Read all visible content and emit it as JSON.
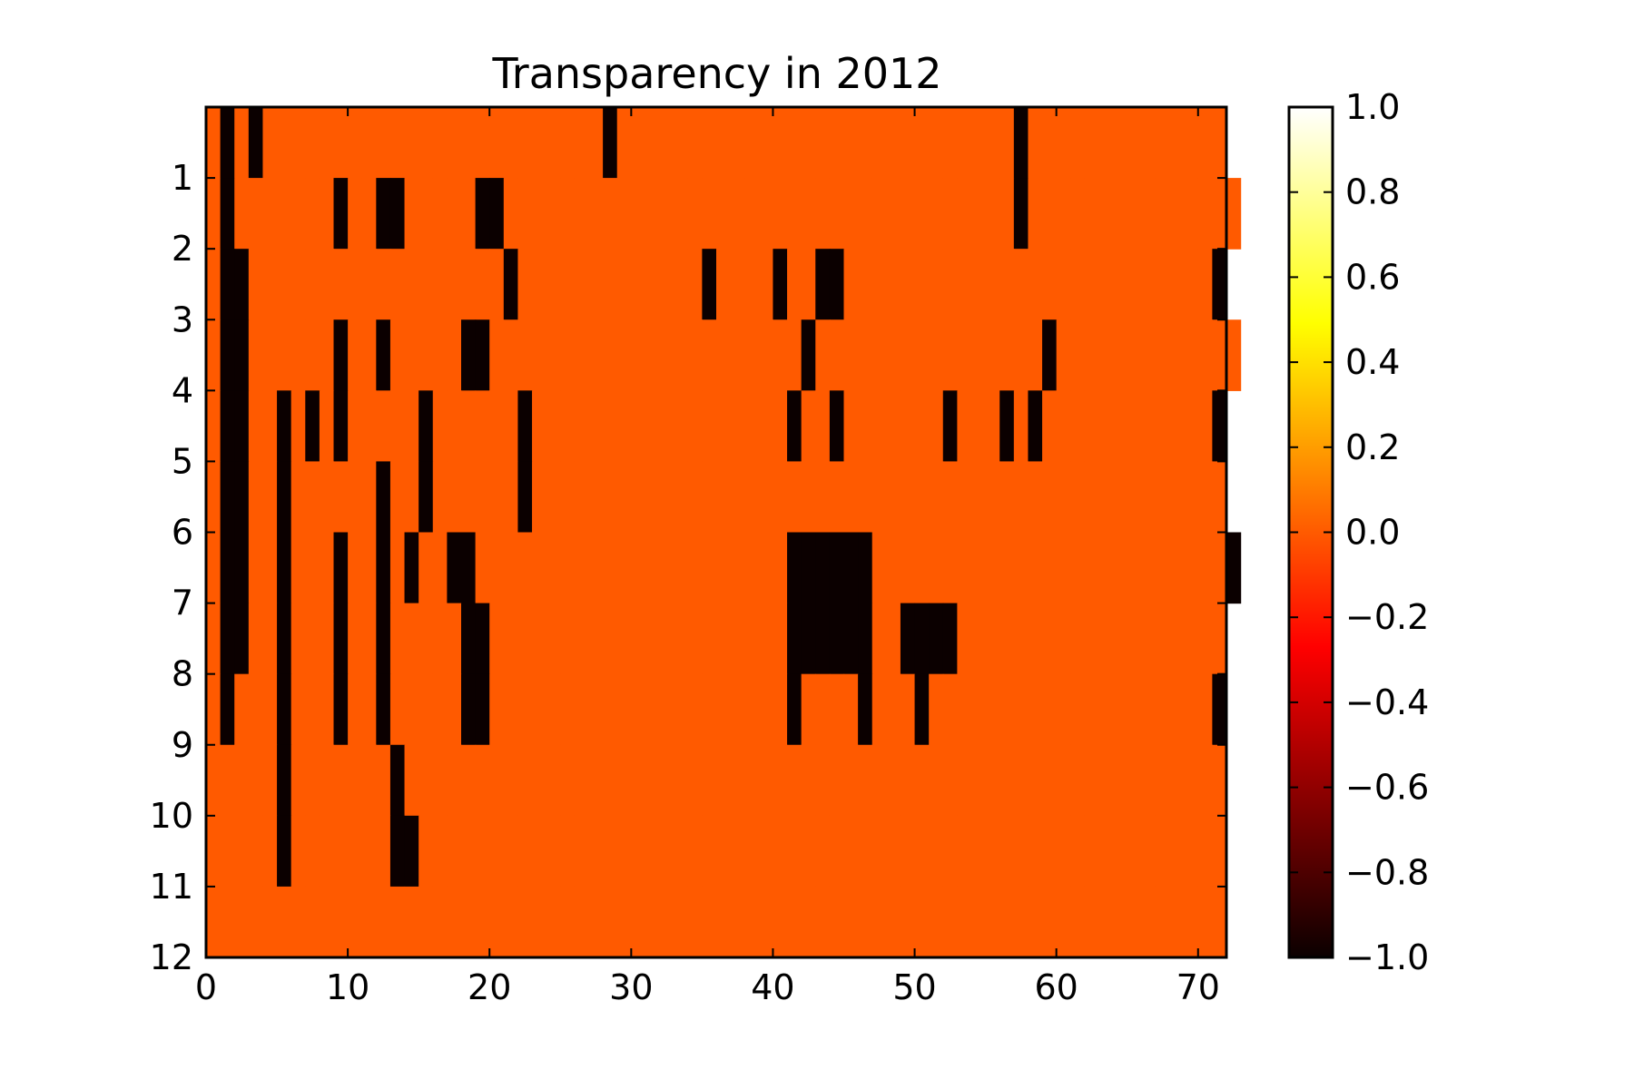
{
  "chart_data": {
    "type": "heatmap",
    "title": "Transparency in 2012",
    "xlabel": "",
    "ylabel": "",
    "xlim": [
      0,
      72
    ],
    "ylim": [
      12,
      0
    ],
    "x_ticks": [
      "0",
      "10",
      "20",
      "30",
      "40",
      "50",
      "60",
      "70"
    ],
    "y_ticks": [
      "1",
      "2",
      "3",
      "4",
      "5",
      "6",
      "7",
      "8",
      "9",
      "10",
      "11",
      "12"
    ],
    "colorbar": {
      "range": [
        -1.0,
        1.0
      ],
      "ticks": [
        "1.0",
        "0.8",
        "0.6",
        "0.4",
        "0.2",
        "0.0",
        "−0.2",
        "−0.4",
        "−0.6",
        "−0.8",
        "−1.0"
      ],
      "colormap": "hot"
    },
    "encoding": "Each row is one y band (0-1 through 11-12). Each string has 72 characters, one per x column 0-71. a = -1.0, b = 0.0, c = 1.0.",
    "rows": [
      "bababbbbbbbbbbbbbbbbbbbbbbbbabbbbbbbbbbbbbbbbbbbbbbbbbbbbabbbbbbbbbbbbbb",
      "babbbbbbbabbaabbbbbaabbbbbbbbbbbbbbbbbbbbbbbbbbbbbbbbbbbbabbbbbbbbbbbbbbb",
      "baabbbbbbbbbbbbbbbbbbabbbbbbbbbbbbbabbbbabbaabbbbbbbbbbbbbbbbbbbbbbbbbba",
      "baabbbbbbabbabbbbbaabbbbbbbbbbbbbbbbbbbbbbabbbbbbbbbbbbbbbbabbbbbbbbbbbbb",
      "baabbabababbbbbabbbbbbabbbbbbbbbbbbbbbbbbabbabbbbbbbabbbababbbbbbbbbbbba",
      "baabbabbbbbbabbabbbbbbabbbbbbbbbbbbbbbbbbbbbbbbbbbbbbbbbbbbbbbbbbbbbbbbb",
      "baabbabbbabbababbaabbbbbbbbbbbbbbbbbbbbbbaaaaaabbbbbbbbbbbbbbbbbbbbbbbbba",
      "baabbabbbabbabbbbbaabbbbbbbbbbbbbbbbbbbbbaaaaaabbaaaabbbbbbbbbbbbbbbbbbb",
      "babbbabbbabbabbbbbaabbbbbbbbbbbbbbbbbbbbbabbbbabbbabbbbbbbbbbbbbbbbbbbba",
      "bbbbbabbbbbbbabbbbbbbbbbbbbbbbbbbbbbbbbbbbbbbbbbbbbbbbbbbbbbbbbbbbbbbbbb",
      "bbbbbabbbbbbbaabbbbbbbbbbbbbbbbbbbbbbbbbbbbbbbbbbbbbbbbbbbbbbbbbbbbbbbbb",
      "bbbbbbbbbbbbbbbbbbbbbbbbbbbbbbbbbbbbbbbbbbbbbbbbbbbbbbbbbbbbbbbbbbbbbbbb"
    ]
  }
}
